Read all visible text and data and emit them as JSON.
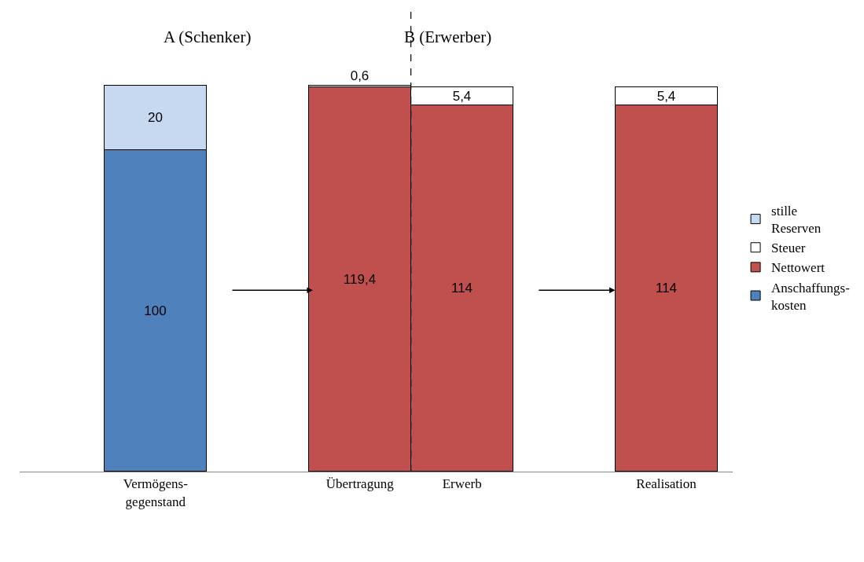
{
  "chart_data": {
    "type": "bar",
    "stacked": true,
    "legend": "right",
    "categories": [
      "Vermögens-\ngegenstand",
      null,
      "Übertragung",
      "Erwerb",
      null,
      "Realisation"
    ],
    "series": [
      {
        "name": "Anschaffungs-\nkosten",
        "color": "#4f81bd",
        "values": [
          100,
          null,
          null,
          null,
          null,
          null
        ],
        "value_labels": [
          "100",
          null,
          null,
          null,
          null,
          null
        ]
      },
      {
        "name": "Nettowert",
        "color": "#c0504d",
        "values": [
          null,
          null,
          119.4,
          114,
          null,
          114
        ],
        "value_labels": [
          null,
          null,
          "119,4",
          "114",
          null,
          "114"
        ]
      },
      {
        "name": "Steuer",
        "color": "#ffffff",
        "values": [
          null,
          null,
          0.6,
          5.4,
          null,
          5.4
        ],
        "value_labels": [
          null,
          null,
          "0,6",
          "5,4",
          null,
          "5,4"
        ]
      },
      {
        "name": "stille\nReserven",
        "color": "#c6d9f1",
        "values": [
          20,
          null,
          null,
          null,
          null,
          null
        ],
        "value_labels": [
          "20",
          null,
          null,
          null,
          null,
          null
        ]
      }
    ],
    "annotations": [
      "A (Schenker)",
      "B (Erwerber)"
    ]
  }
}
